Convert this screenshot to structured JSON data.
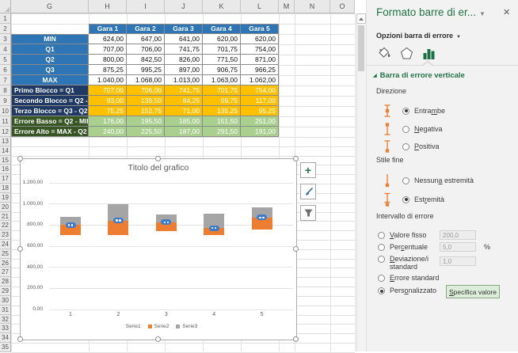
{
  "spreadsheet": {
    "columns": [
      "G",
      "H",
      "I",
      "J",
      "K",
      "L",
      "M",
      "N",
      "O"
    ],
    "first_row": 1,
    "last_row": 35
  },
  "table": {
    "competition_headers": [
      "Gara 1",
      "Gara 2",
      "Gara 3",
      "Gara 4",
      "Gara 5"
    ],
    "rows": [
      {
        "label": "MIN",
        "style": "stat",
        "values": [
          "624,00",
          "647,00",
          "641,00",
          "620,00",
          "620,00"
        ]
      },
      {
        "label": "Q1",
        "style": "stat",
        "values": [
          "707,00",
          "706,00",
          "741,75",
          "701,75",
          "754,00"
        ]
      },
      {
        "label": "Q2",
        "style": "stat",
        "values": [
          "800,00",
          "842,50",
          "826,00",
          "771,50",
          "871,00"
        ]
      },
      {
        "label": "Q3",
        "style": "stat",
        "values": [
          "875,25",
          "995,25",
          "897,00",
          "906,75",
          "966,25"
        ]
      },
      {
        "label": "MAX",
        "style": "stat",
        "values": [
          "1.040,00",
          "1.068,00",
          "1.013,00",
          "1.063,00",
          "1.062,00"
        ]
      },
      {
        "label": "Primo Blocco = Q1",
        "style": "block",
        "values": [
          "707,00",
          "706,00",
          "741,75",
          "701,75",
          "754,00"
        ]
      },
      {
        "label": "Secondo Blocco = Q2 - Q1",
        "style": "block",
        "values": [
          "93,00",
          "136,50",
          "84,25",
          "69,75",
          "117,00"
        ]
      },
      {
        "label": "Terzo Blocco = Q3 - Q2",
        "style": "block",
        "values": [
          "75,25",
          "152,75",
          "71,00",
          "135,25",
          "95,25"
        ]
      },
      {
        "label": "Errore Basso = Q2 - MIN",
        "style": "error",
        "values": [
          "176,00",
          "195,50",
          "185,00",
          "151,50",
          "251,00"
        ]
      },
      {
        "label": "Errore Alto = MAX - Q2",
        "style": "error",
        "values": [
          "240,00",
          "225,50",
          "187,00",
          "291,50",
          "191,00"
        ]
      }
    ]
  },
  "chart_data": {
    "type": "bar",
    "subtype": "stacked",
    "title": "Titolo del grafico",
    "categories": [
      "1",
      "2",
      "3",
      "4",
      "5"
    ],
    "series": [
      {
        "name": "Serie1",
        "color": "#FFFFFF",
        "values": [
          707,
          706,
          741.75,
          701.75,
          754
        ]
      },
      {
        "name": "Serie2",
        "color": "#ED7D31",
        "values": [
          93,
          136.5,
          84.25,
          69.75,
          117
        ]
      },
      {
        "name": "Serie3",
        "color": "#A5A5A5",
        "values": [
          75.25,
          152.75,
          71,
          135.25,
          95.25
        ]
      }
    ],
    "error_low": [
      176,
      195.5,
      185,
      151.5,
      251
    ],
    "error_high": [
      240,
      225.5,
      187,
      291.5,
      191
    ],
    "ylim": [
      0,
      1200
    ],
    "yticks": [
      "0,00",
      "200,00",
      "400,00",
      "600,00",
      "800,00",
      "1.000,00",
      "1.200,00"
    ],
    "grid": true,
    "legend_position": "bottom"
  },
  "panel": {
    "title": "Formato barre di er...",
    "subtitle": "Opzioni barra di errore",
    "section": "Barra di errore verticale",
    "direction": {
      "label": "Direzione",
      "options": [
        {
          "pre": "Entra",
          "key": "m",
          "post": "be",
          "selected": true,
          "icon": "both"
        },
        {
          "pre": "",
          "key": "N",
          "post": "egativa",
          "selected": false,
          "icon": "negative"
        },
        {
          "pre": "",
          "key": "P",
          "post": "ositiva",
          "selected": false,
          "icon": "positive"
        }
      ]
    },
    "end_style": {
      "label": "Stile fine",
      "options": [
        {
          "pre": "Nessun",
          "key": "a",
          "post": " estremità",
          "selected": false,
          "icon": "no-cap"
        },
        {
          "pre": "Est",
          "key": "r",
          "post": "emità",
          "selected": true,
          "icon": "cap"
        }
      ]
    },
    "amount": {
      "label": "Intervallo di errore",
      "options": [
        {
          "pre": "",
          "key": "V",
          "post": "alore fisso",
          "selected": false,
          "input": "200,0"
        },
        {
          "pre": "Per",
          "key": "c",
          "post": "entuale",
          "selected": false,
          "input": "5,0",
          "suffix": "%"
        },
        {
          "pre": "",
          "key": "D",
          "post": "eviazione/i standard",
          "selected": false,
          "input": "1,0"
        },
        {
          "pre": "",
          "key": "E",
          "post": "rrore standard",
          "selected": false
        },
        {
          "pre": "Pers",
          "key": "o",
          "post": "nalizzato",
          "selected": true,
          "button": {
            "pre": "",
            "key": "S",
            "post": "pecifica valore"
          }
        }
      ]
    }
  },
  "icons": {
    "dropdown": "▼",
    "dropdown_small": "▼",
    "close": "✕",
    "section_triangle": "◢",
    "plus": "+"
  },
  "colors": {
    "accent_green": "#217346",
    "header_blue": "#2E75B6",
    "navy_label": "#1F3864",
    "calc_orange": "#FFC000",
    "dark_green_label": "#375623",
    "light_green": "#A9D08E",
    "bar_orange": "#ED7D31",
    "bar_gray": "#A5A5A5",
    "marker_blue": "#3E7CC9"
  }
}
